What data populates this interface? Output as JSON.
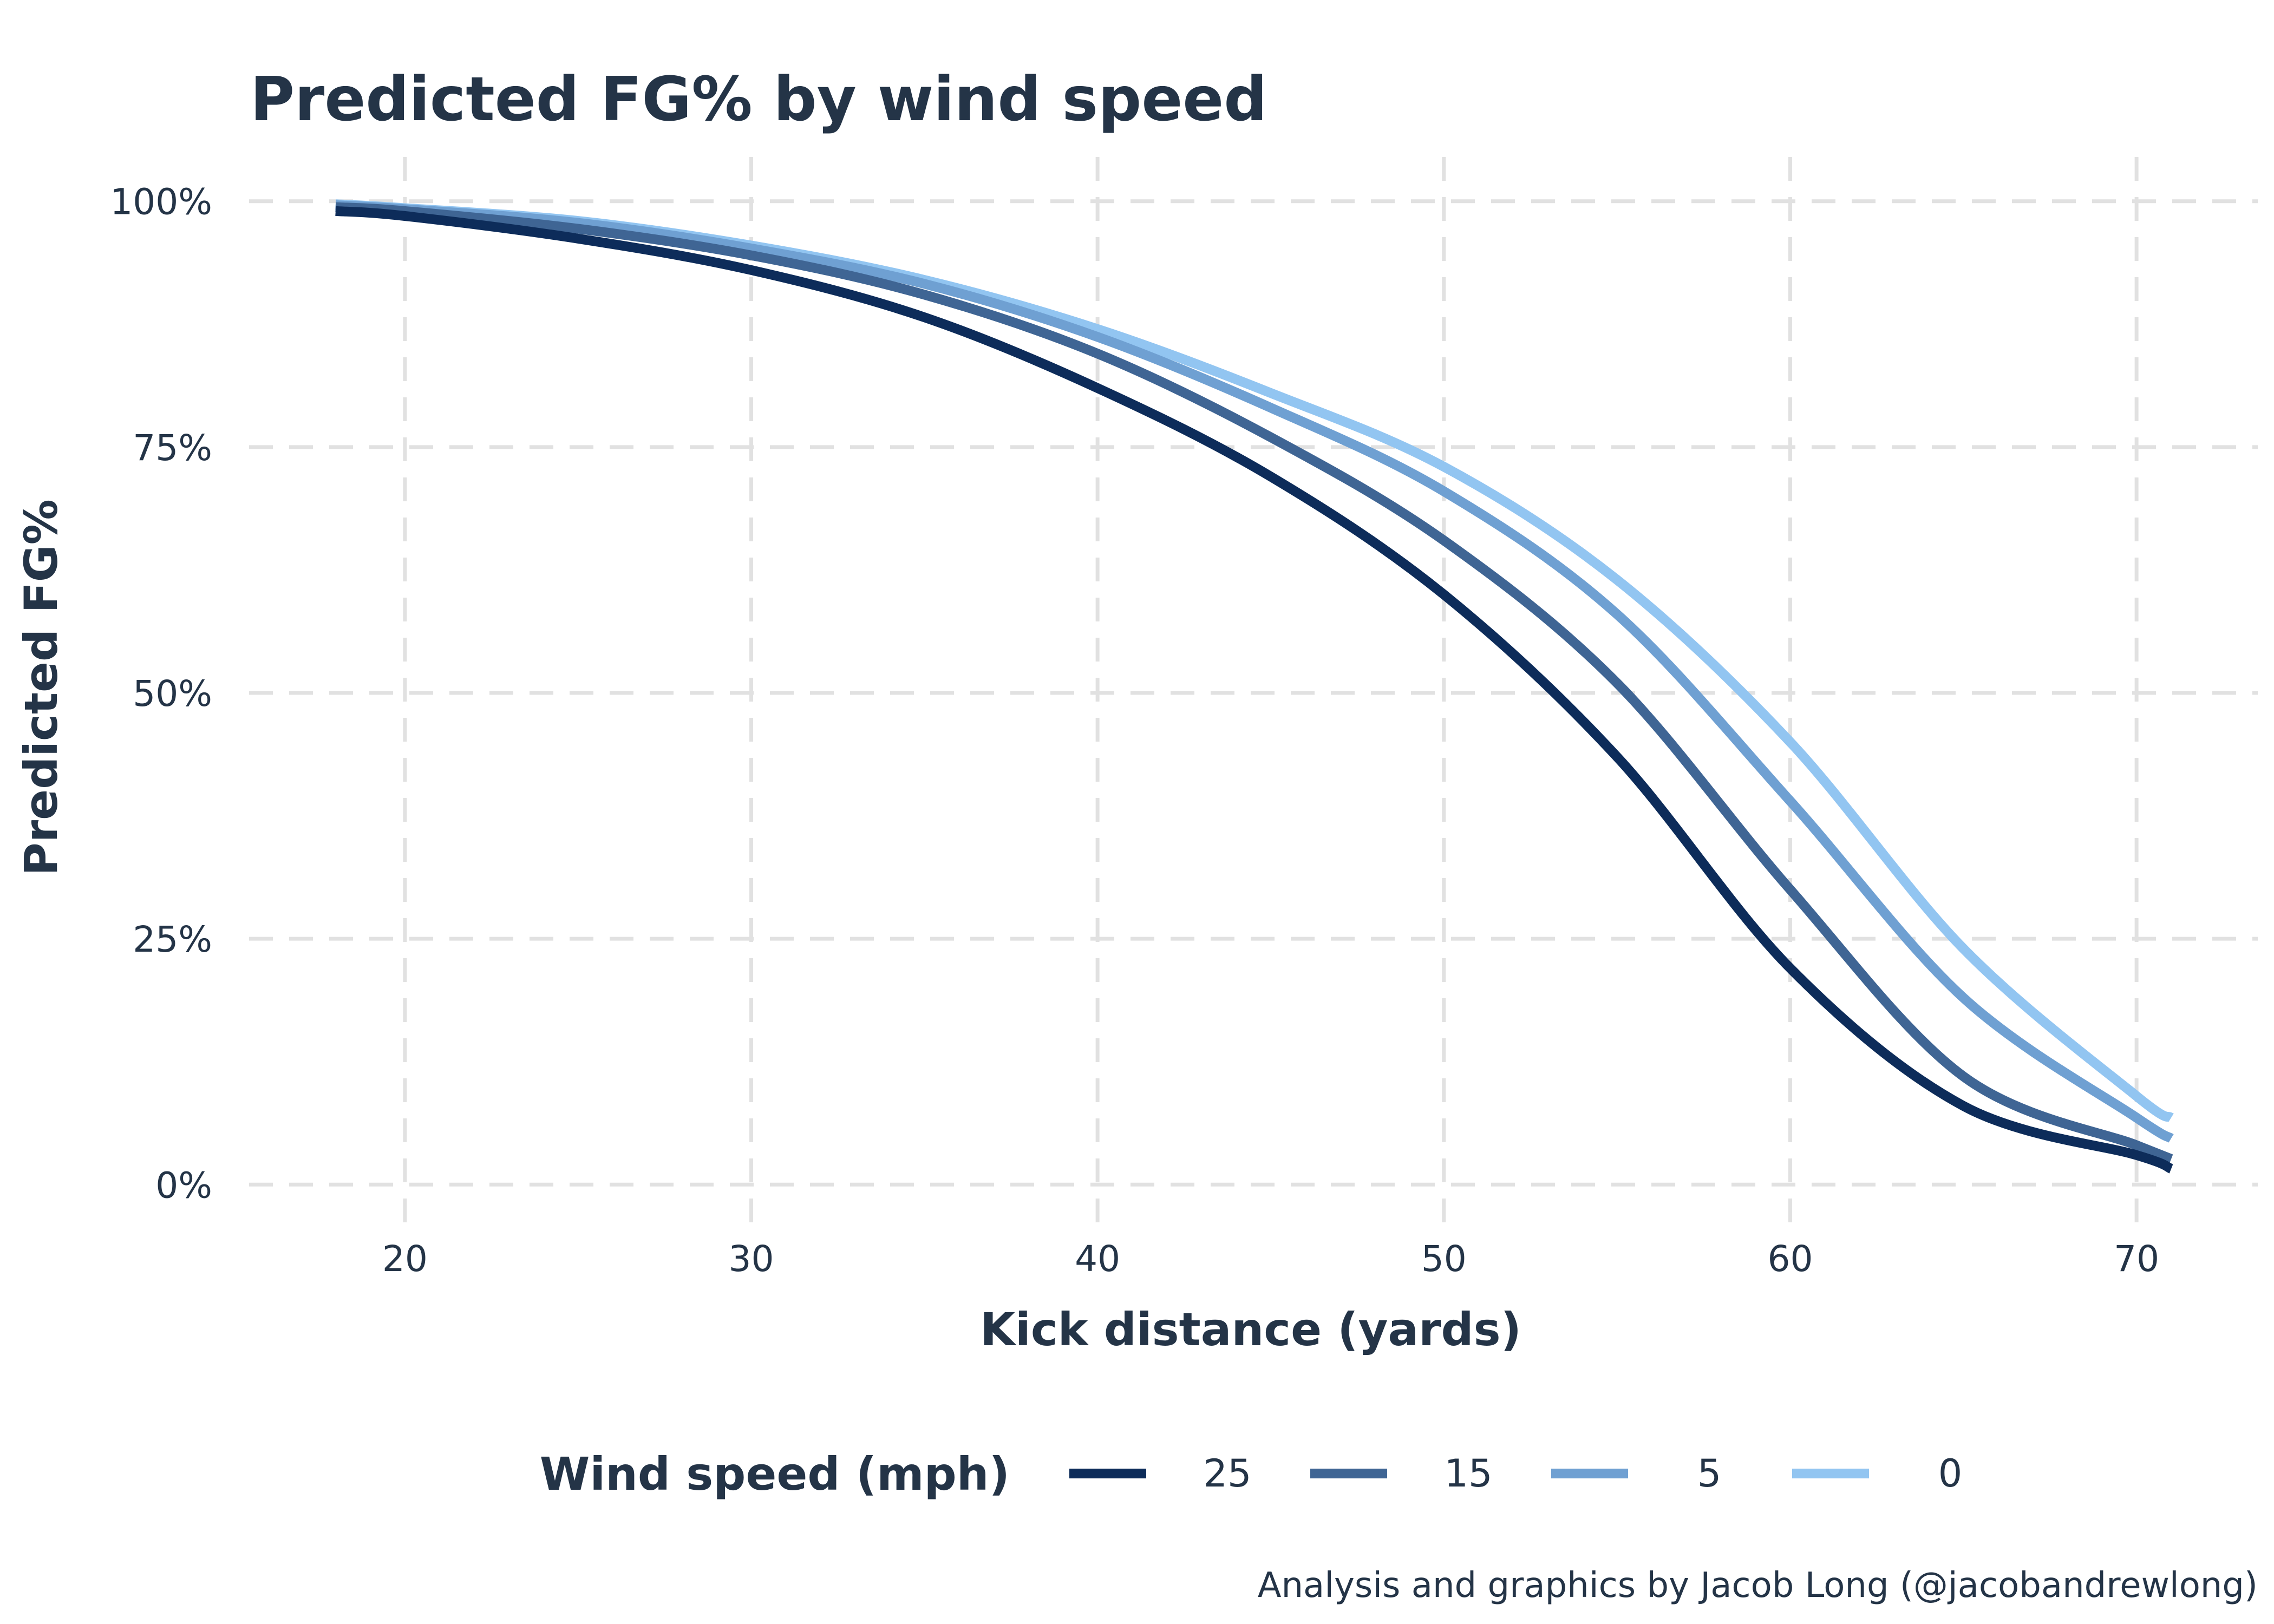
{
  "chart_data": {
    "type": "line",
    "title": "Predicted FG% by wind speed",
    "xlabel": "Kick distance (yards)",
    "ylabel": "Predicted FG%",
    "xlim": [
      15.5,
      73.5
    ],
    "ylim": [
      -0.045,
      1.045
    ],
    "x_ticks": [
      20,
      30,
      40,
      50,
      60,
      70
    ],
    "x_tick_labels": [
      "20",
      "30",
      "40",
      "50",
      "60",
      "70"
    ],
    "y_ticks": [
      0,
      0.25,
      0.5,
      0.75,
      1.0
    ],
    "y_tick_labels": [
      "0%",
      "25%",
      "50%",
      "75%",
      "100%"
    ],
    "grid": true,
    "legend": {
      "title": "Wind speed (mph)",
      "position": "bottom"
    },
    "x": [
      18,
      20,
      25,
      30,
      35,
      40,
      45,
      50,
      55,
      60,
      65,
      70,
      71
    ],
    "series": [
      {
        "name": "25",
        "color": "#0d2c5a",
        "values": [
          0.99,
          0.985,
          0.962,
          0.93,
          0.882,
          0.81,
          0.72,
          0.6,
          0.435,
          0.22,
          0.08,
          0.03,
          0.016
        ]
      },
      {
        "name": "15",
        "color": "#3f6594",
        "values": [
          0.994,
          0.99,
          0.972,
          0.945,
          0.905,
          0.845,
          0.76,
          0.655,
          0.51,
          0.3,
          0.11,
          0.04,
          0.026
        ]
      },
      {
        "name": "5",
        "color": "#6fa0d2",
        "values": [
          0.996,
          0.992,
          0.978,
          0.952,
          0.916,
          0.862,
          0.79,
          0.705,
          0.58,
          0.39,
          0.19,
          0.068,
          0.047
        ]
      },
      {
        "name": "0",
        "color": "#92c5f1",
        "values": [
          0.997,
          0.993,
          0.98,
          0.955,
          0.92,
          0.87,
          0.805,
          0.73,
          0.615,
          0.45,
          0.24,
          0.09,
          0.068
        ]
      }
    ],
    "caption": "Analysis and graphics by Jacob Long (@jacobandrewlong)"
  }
}
